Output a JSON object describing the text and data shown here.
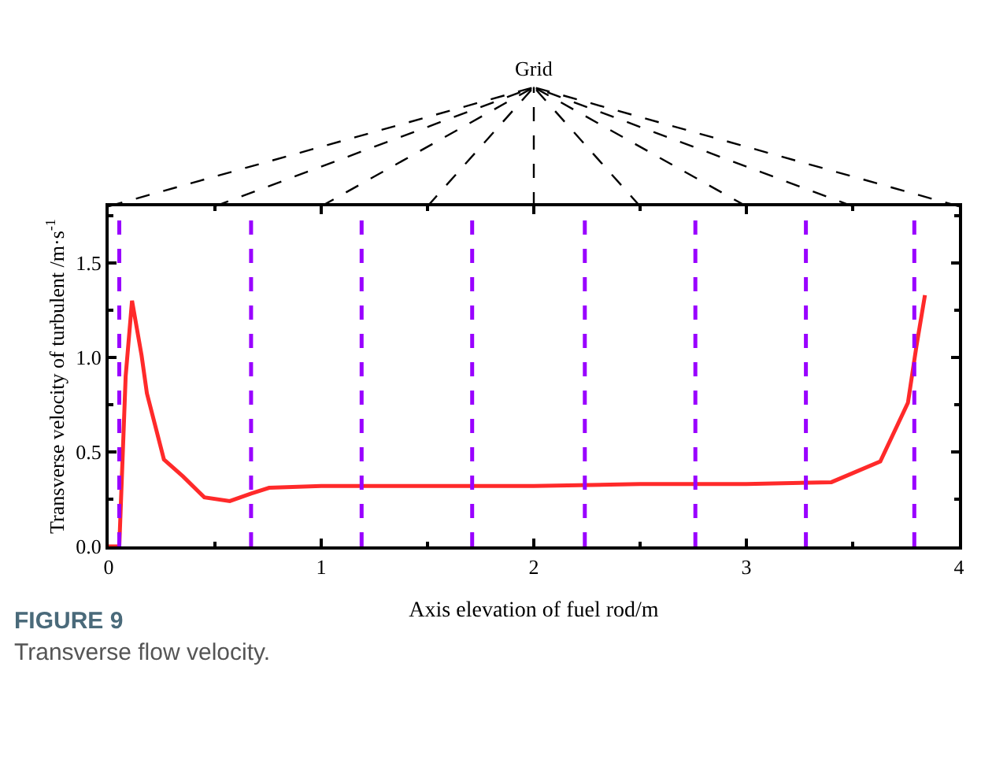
{
  "chart_data": {
    "type": "line",
    "xlabel": "Axis elevation of fuel rod/m",
    "ylabel": "Transverse velocity of turbulent /m·s$^{-1}$",
    "x": [
      0,
      0.05,
      0.08,
      0.11,
      0.155,
      0.18,
      0.26,
      0.35,
      0.45,
      0.57,
      0.67,
      0.755,
      1.0,
      1.5,
      2.0,
      2.5,
      3.0,
      3.4,
      3.63,
      3.76,
      3.8,
      3.84
    ],
    "series": [
      {
        "color": "#ff2a2a",
        "values": [
          0,
          0,
          0.9,
          1.3,
          1.01,
          0.81,
          0.46,
          0.37,
          0.26,
          0.24,
          0.28,
          0.31,
          0.32,
          0.32,
          0.32,
          0.33,
          0.33,
          0.34,
          0.45,
          0.76,
          1.06,
          1.33
        ]
      }
    ],
    "xlim": [
      0,
      4
    ],
    "xticks": [
      0,
      1,
      2,
      3,
      4
    ],
    "ylim": [
      0,
      1.8
    ],
    "yticks": [
      {
        "value": 0,
        "label": "0.0"
      },
      0.5,
      {
        "value": 1,
        "label": "1.0"
      },
      1.5
    ],
    "ref_lines": [
      {
        "axis": "x",
        "value": 0.05,
        "color": "#9900ff",
        "line_style": "dashed"
      },
      {
        "axis": "x",
        "value": 0.67,
        "color": "#9900ff",
        "line_style": "dashed"
      },
      {
        "axis": "x",
        "value": 1.19,
        "color": "#9900ff",
        "line_style": "dashed"
      },
      {
        "axis": "x",
        "value": 1.71,
        "color": "#9900ff",
        "line_style": "dashed"
      },
      {
        "axis": "x",
        "value": 2.24,
        "color": "#9900ff",
        "line_style": "dashed"
      },
      {
        "axis": "x",
        "value": 2.76,
        "color": "#9900ff",
        "line_style": "dashed"
      },
      {
        "axis": "x",
        "value": 3.28,
        "color": "#9900ff",
        "line_style": "dashed"
      },
      {
        "axis": "x",
        "value": 3.79,
        "color": "#9900ff",
        "line_style": "dashed"
      }
    ],
    "annotations": [
      "Grid",
      "FIGURE 9",
      "Transverse flow velocity."
    ],
    "marker": "none",
    "line_style": "solid"
  }
}
